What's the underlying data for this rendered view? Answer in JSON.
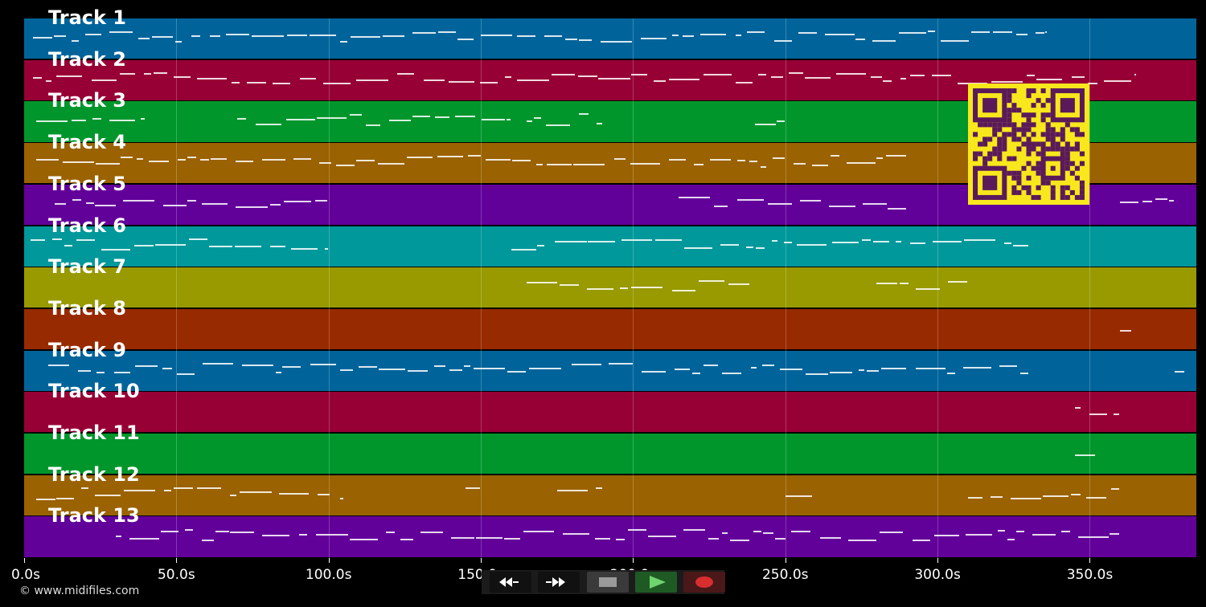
{
  "tracks": [
    {
      "label": "Track 1",
      "color": "#00649a"
    },
    {
      "label": "Track 2",
      "color": "#970035"
    },
    {
      "label": "Track 3",
      "color": "#00962c"
    },
    {
      "label": "Track 4",
      "color": "#9a6200"
    },
    {
      "label": "Track 5",
      "color": "#62009a"
    },
    {
      "label": "Track 6",
      "color": "#00989a"
    },
    {
      "label": "Track 7",
      "color": "#989a00"
    },
    {
      "label": "Track 8",
      "color": "#982a00"
    },
    {
      "label": "Track 9",
      "color": "#00649a"
    },
    {
      "label": "Track 10",
      "color": "#970035"
    },
    {
      "label": "Track 11",
      "color": "#00962c"
    },
    {
      "label": "Track 12",
      "color": "#9a6200"
    },
    {
      "label": "Track 13",
      "color": "#62009a"
    }
  ],
  "timeline": {
    "max_seconds": 385,
    "ticks": [
      "0.0s",
      "50.0s",
      "100.0s",
      "150.0s",
      "200.0s",
      "250.0s",
      "300.0s",
      "350.0s"
    ],
    "tick_values": [
      0,
      50,
      100,
      150,
      200,
      250,
      300,
      350
    ]
  },
  "copyright": "© www.midifiles.com",
  "qr": {
    "color": "#f8e71c",
    "dark": "#5a1a5a"
  },
  "transport": {
    "rewind_icon": "rewind-icon",
    "fast_forward_icon": "fast-forward-icon",
    "stop_icon": "stop-icon",
    "play_icon": "play-icon",
    "record_icon": "record-icon"
  }
}
